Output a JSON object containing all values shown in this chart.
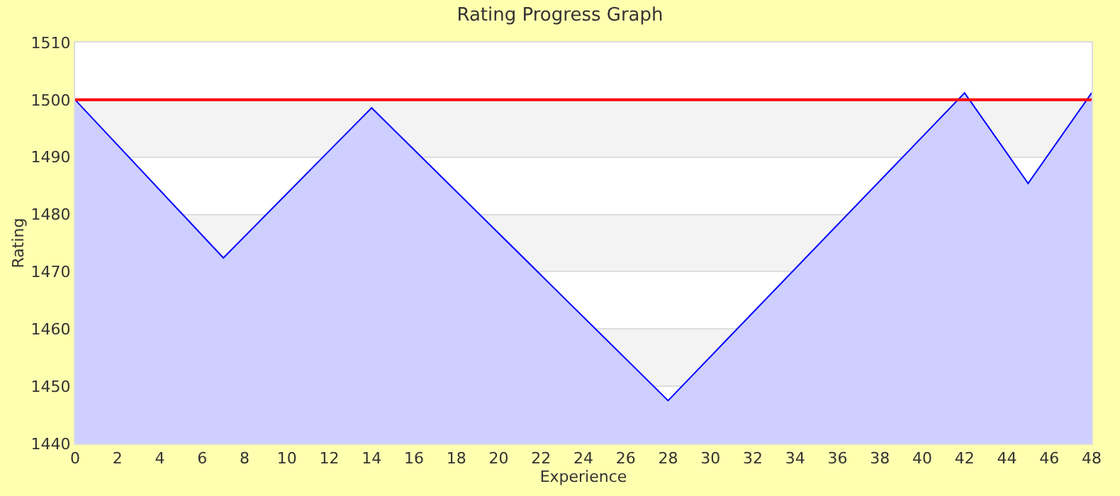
{
  "chart_data": {
    "type": "area",
    "title": "Rating Progress Graph",
    "xlabel": "Experience",
    "ylabel": "Rating",
    "x": [
      0,
      7,
      14,
      28,
      42,
      45,
      48
    ],
    "series": [
      {
        "color": "#0000ff",
        "values": [
          1500,
          1472.4,
          1498.6,
          1447.5,
          1501.2,
          1485.4,
          1501.2
        ]
      }
    ],
    "xlim": [
      0,
      48
    ],
    "xticks": [
      0,
      2,
      4,
      6,
      8,
      10,
      12,
      14,
      16,
      18,
      20,
      22,
      24,
      26,
      28,
      30,
      32,
      34,
      36,
      38,
      40,
      42,
      44,
      46,
      48
    ],
    "ylim": [
      1440,
      1510
    ],
    "yticks": [
      1440,
      1450,
      1460,
      1470,
      1480,
      1490,
      1500,
      1510
    ],
    "grid": "y",
    "marker": "none",
    "line_style": "solid",
    "ref_lines": [
      {
        "axis": "y",
        "value": 1500,
        "color": "#ff0000"
      }
    ],
    "bands": [
      {
        "axis": "y",
        "from": 1490,
        "to": 1500,
        "color": "#f3f3f3"
      },
      {
        "axis": "y",
        "from": 1470,
        "to": 1480,
        "color": "#f3f3f3"
      },
      {
        "axis": "y",
        "from": 1450,
        "to": 1460,
        "color": "#f3f3f3"
      }
    ]
  }
}
